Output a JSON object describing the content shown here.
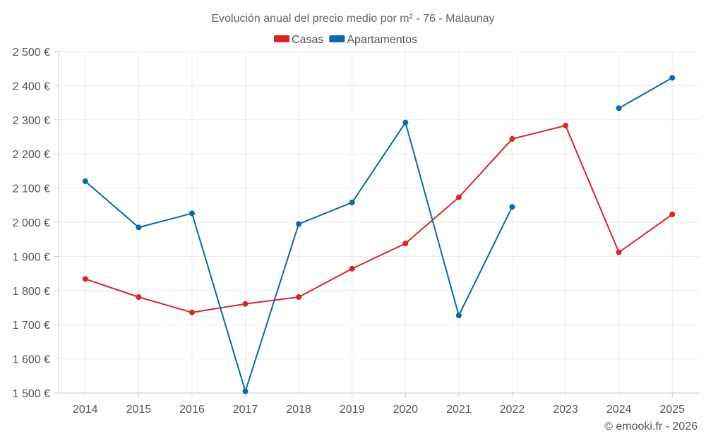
{
  "chart_data": {
    "type": "line",
    "title": "Evolución anual del precio medio por m² - 76 - Malaunay",
    "categories": [
      "2014",
      "2015",
      "2016",
      "2017",
      "2018",
      "2019",
      "2020",
      "2021",
      "2022",
      "2023",
      "2024",
      "2025"
    ],
    "series": [
      {
        "name": "Casas",
        "color": "#d62728",
        "values": [
          1834,
          1781,
          1736,
          1761,
          1781,
          1864,
          1938,
          2073,
          2244,
          2283,
          1912,
          2023
        ]
      },
      {
        "name": "Apartamentos",
        "color": "#0a6aa1",
        "values": [
          2120,
          1985,
          2026,
          1505,
          1995,
          2058,
          2292,
          1727,
          2045,
          null,
          2334,
          2423
        ]
      }
    ],
    "ylim": [
      1500,
      2500
    ],
    "y_ticks": [
      1500,
      1600,
      1700,
      1800,
      1900,
      2000,
      2100,
      2200,
      2300,
      2400,
      2500
    ],
    "y_tick_labels": [
      "1 500 €",
      "1 600 €",
      "1 700 €",
      "1 800 €",
      "1 900 €",
      "2 000 €",
      "2 100 €",
      "2 200 €",
      "2 300 €",
      "2 400 €",
      "2 500 €"
    ],
    "xlabel": "",
    "ylabel": "",
    "grid": true,
    "legend": "top-center"
  },
  "credit": "© emooki.fr - 2026"
}
